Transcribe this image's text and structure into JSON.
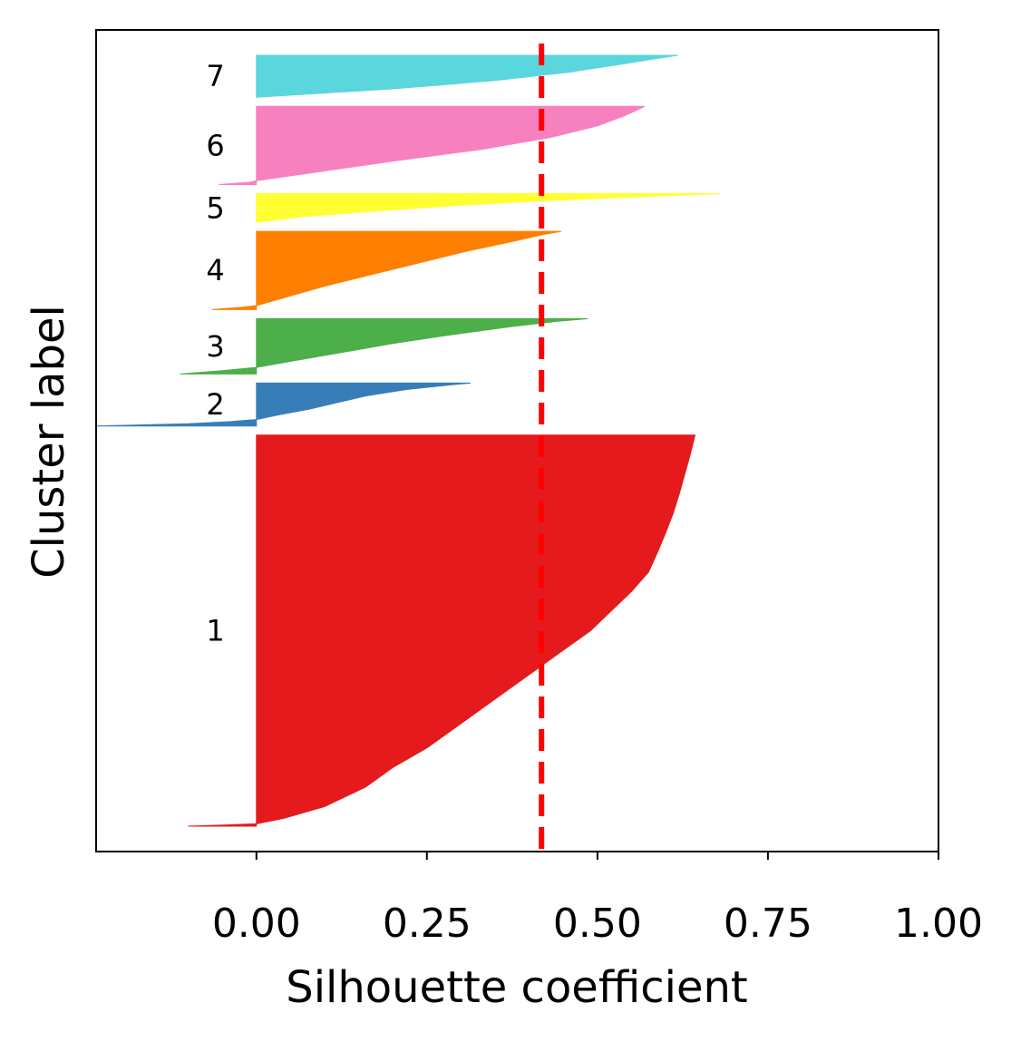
{
  "chart_data": {
    "type": "area",
    "xlabel": "Silhouette coefficient",
    "ylabel": "Cluster label",
    "xlim": [
      -0.235,
      1.0
    ],
    "x_ticks": [
      "0.00",
      "0.25",
      "0.50",
      "0.75",
      "1.00"
    ],
    "x_tick_values": [
      0.0,
      0.25,
      0.5,
      0.75,
      1.0
    ],
    "average_silhouette": 0.418,
    "average_line_color": "#ff0000",
    "average_line_style": "dashed",
    "grid": false,
    "legend": "none",
    "clusters": [
      {
        "label": "1",
        "color": "#e41a1c",
        "samples": 410,
        "min": -0.1,
        "max": 0.643,
        "profile": [
          [
            0.0,
            -0.1
          ],
          [
            0.004,
            -0.03
          ],
          [
            0.006,
            0.0
          ],
          [
            0.02,
            0.04
          ],
          [
            0.05,
            0.1
          ],
          [
            0.1,
            0.16
          ],
          [
            0.15,
            0.2
          ],
          [
            0.2,
            0.25
          ],
          [
            0.25,
            0.29
          ],
          [
            0.3,
            0.33
          ],
          [
            0.35,
            0.37
          ],
          [
            0.4,
            0.41
          ],
          [
            0.45,
            0.45
          ],
          [
            0.5,
            0.49
          ],
          [
            0.55,
            0.52
          ],
          [
            0.6,
            0.55
          ],
          [
            0.65,
            0.575
          ],
          [
            0.7,
            0.588
          ],
          [
            0.75,
            0.6
          ],
          [
            0.8,
            0.611
          ],
          [
            0.85,
            0.62
          ],
          [
            0.9,
            0.628
          ],
          [
            0.95,
            0.636
          ],
          [
            1.0,
            0.643
          ]
        ]
      },
      {
        "label": "2",
        "color": "#377eb8",
        "samples": 45,
        "min": -0.235,
        "max": 0.314,
        "profile": [
          [
            0.0,
            -0.235
          ],
          [
            0.05,
            -0.1
          ],
          [
            0.1,
            -0.04
          ],
          [
            0.15,
            0.0
          ],
          [
            0.25,
            0.03
          ],
          [
            0.4,
            0.08
          ],
          [
            0.55,
            0.12
          ],
          [
            0.7,
            0.16
          ],
          [
            0.85,
            0.22
          ],
          [
            0.95,
            0.28
          ],
          [
            1.0,
            0.314
          ]
        ]
      },
      {
        "label": "3",
        "color": "#4daf4a",
        "samples": 58,
        "min": -0.112,
        "max": 0.486,
        "profile": [
          [
            0.0,
            -0.112
          ],
          [
            0.06,
            -0.05
          ],
          [
            0.12,
            0.0
          ],
          [
            0.25,
            0.06
          ],
          [
            0.4,
            0.13
          ],
          [
            0.55,
            0.2
          ],
          [
            0.7,
            0.28
          ],
          [
            0.85,
            0.37
          ],
          [
            0.95,
            0.44
          ],
          [
            1.0,
            0.486
          ]
        ]
      },
      {
        "label": "4",
        "color": "#ff7f00",
        "samples": 82,
        "min": -0.065,
        "max": 0.447,
        "profile": [
          [
            0.0,
            -0.065
          ],
          [
            0.03,
            -0.02
          ],
          [
            0.05,
            0.0
          ],
          [
            0.15,
            0.04
          ],
          [
            0.3,
            0.1
          ],
          [
            0.45,
            0.17
          ],
          [
            0.6,
            0.24
          ],
          [
            0.75,
            0.31
          ],
          [
            0.88,
            0.38
          ],
          [
            0.96,
            0.42
          ],
          [
            1.0,
            0.447
          ]
        ]
      },
      {
        "label": "5",
        "color": "#ffff33",
        "samples": 30,
        "min": 0.0,
        "max": 0.681,
        "profile": [
          [
            0.0,
            0.0
          ],
          [
            0.2,
            0.07
          ],
          [
            0.4,
            0.18
          ],
          [
            0.6,
            0.3
          ],
          [
            0.75,
            0.42
          ],
          [
            0.85,
            0.52
          ],
          [
            0.93,
            0.6
          ],
          [
            1.0,
            0.681
          ]
        ]
      },
      {
        "label": "6",
        "color": "#f781bf",
        "samples": 82,
        "min": -0.055,
        "max": 0.569,
        "profile": [
          [
            0.0,
            -0.055
          ],
          [
            0.03,
            -0.01
          ],
          [
            0.05,
            0.0
          ],
          [
            0.15,
            0.08
          ],
          [
            0.3,
            0.2
          ],
          [
            0.45,
            0.33
          ],
          [
            0.6,
            0.43
          ],
          [
            0.75,
            0.5
          ],
          [
            0.88,
            0.54
          ],
          [
            0.96,
            0.56
          ],
          [
            1.0,
            0.569
          ]
        ]
      },
      {
        "label": "7",
        "color": "#5ad6dc",
        "samples": 44,
        "min": 0.0,
        "max": 0.618,
        "profile": [
          [
            0.0,
            0.0
          ],
          [
            0.2,
            0.2
          ],
          [
            0.4,
            0.35
          ],
          [
            0.6,
            0.46
          ],
          [
            0.8,
            0.54
          ],
          [
            0.92,
            0.585
          ],
          [
            1.0,
            0.618
          ]
        ]
      }
    ]
  }
}
